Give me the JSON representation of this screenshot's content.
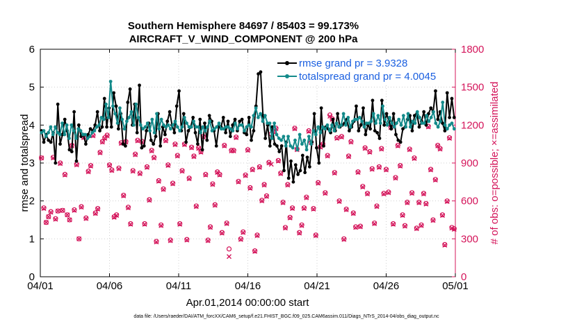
{
  "chart_data": {
    "type": "line",
    "title_line1": "Southern Hemisphere 84697 / 85403 = 99.173%",
    "title_line2": "AIRCRAFT_V_WIND_COMPONENT @ 200 hPa",
    "xlabel": "Apr.01,2014 00:00:00 start",
    "ylabel": "rmse and totalspread",
    "y2label": "# of obs: o=possible; ×=assimilated",
    "footer": "data file: /Users/raeder/DAI/ATM_forcXX/CAM6_setup/f.e21.FHIST_BGC.f09_025.CAM6assim.011/Diags_NTrS_2014-04/obs_diag_output.nc",
    "xlim": [
      0,
      30
    ],
    "ylim": [
      0,
      6
    ],
    "y2lim": [
      0,
      1800
    ],
    "x_ticks": [
      {
        "day": 0,
        "label": "04/01"
      },
      {
        "day": 5,
        "label": "04/06"
      },
      {
        "day": 10,
        "label": "04/11"
      },
      {
        "day": 15,
        "label": "04/16"
      },
      {
        "day": 20,
        "label": "04/21"
      },
      {
        "day": 25,
        "label": "04/26"
      },
      {
        "day": 30,
        "label": "05/01"
      }
    ],
    "y_ticks": [
      0,
      1,
      2,
      3,
      4,
      5,
      6
    ],
    "y2_ticks": [
      0,
      300,
      600,
      900,
      1200,
      1500,
      1800
    ],
    "colors": {
      "rmse": "#000000",
      "spread": "#138a8a",
      "obs": "#d4145a",
      "legend_text": "#1a5fe0"
    },
    "series": [
      {
        "name": "rmse",
        "legend": "rmse grand pr = 3.9328",
        "values": [
          3.85,
          3.55,
          3.75,
          3.6,
          3.55,
          3.8,
          3.0,
          4.55,
          3.5,
          3.75,
          4.15,
          3.85,
          3.35,
          3.3,
          4.35,
          3.05,
          4.0,
          3.7,
          3.75,
          3.5,
          3.75,
          3.9,
          3.85,
          4.0,
          4.35,
          3.85,
          3.95,
          4.7,
          3.95,
          4.45,
          3.95,
          4.85,
          4.5,
          3.9,
          4.3,
          3.5,
          3.45,
          4.6,
          4.95,
          4.0,
          4.55,
          3.8,
          5.05,
          3.4,
          3.45,
          3.85,
          4.05,
          3.6,
          3.5,
          3.7,
          4.3,
          3.45,
          3.95,
          3.75,
          4.1,
          4.35,
          4.0,
          3.8,
          4.5,
          4.9,
          3.85,
          4.3,
          3.55,
          3.85,
          3.95,
          4.2,
          3.8,
          3.5,
          4.15,
          3.35,
          4.05,
          3.6,
          4.25,
          4.1,
          3.85,
          3.45,
          3.95,
          3.95,
          4.2,
          3.8,
          4.1,
          3.7,
          4.0,
          4.15,
          3.85,
          4.1,
          4.15,
          3.8,
          3.75,
          4.2,
          3.6,
          3.85,
          4.5,
          5.35,
          5.4,
          4.25,
          3.65,
          4.0,
          3.45,
          3.95,
          3.5,
          3.45,
          3.3,
          3.45,
          2.8,
          3.55,
          2.6,
          3.05,
          2.5,
          2.95,
          2.7,
          2.8,
          3.2,
          2.75,
          3.15,
          2.9,
          3.55,
          4.3,
          3.4,
          3.0,
          4.45,
          3.45,
          3.95,
          3.9,
          3.8,
          4.15,
          3.85,
          4.3,
          3.95,
          4.0,
          4.05,
          4.15,
          3.85,
          3.95,
          4.1,
          4.5,
          3.85,
          4.0,
          4.45,
          3.75,
          4.0,
          3.9,
          4.65,
          3.85,
          3.8,
          3.65,
          4.65,
          4.0,
          4.3,
          4.1,
          3.9,
          4.3,
          3.75,
          3.6,
          3.55,
          3.9,
          3.95,
          4.15,
          4.25,
          3.85,
          4.25,
          4.3,
          3.95,
          4.1,
          4.35,
          4.0,
          4.3,
          4.45,
          4.35,
          4.9,
          4.15,
          4.35,
          4.05,
          3.85,
          4.85,
          4.2,
          4.7,
          4.2
        ]
      },
      {
        "name": "totalspread",
        "legend": "totalspread grand pr = 4.0045",
        "values": [
          3.8,
          3.85,
          3.7,
          3.8,
          3.95,
          3.75,
          3.95,
          3.8,
          3.75,
          4.05,
          3.75,
          4.0,
          3.65,
          4.0,
          3.85,
          3.65,
          3.9,
          3.85,
          3.75,
          3.75,
          3.65,
          3.7,
          3.8,
          3.85,
          3.95,
          4.0,
          4.2,
          4.15,
          4.55,
          4.2,
          5.15,
          4.5,
          4.3,
          4.05,
          4.45,
          4.15,
          3.9,
          4.1,
          4.2,
          4.35,
          4.0,
          4.55,
          4.2,
          4.0,
          3.9,
          3.95,
          4.05,
          3.85,
          4.15,
          3.8,
          4.3,
          3.9,
          4.15,
          4.0,
          3.95,
          4.0,
          3.9,
          4.0,
          4.1,
          3.95,
          3.85,
          3.95,
          4.2,
          4.05,
          3.95,
          3.95,
          4.1,
          3.95,
          3.95,
          3.8,
          3.95,
          3.85,
          3.95,
          4.1,
          3.85,
          3.9,
          3.95,
          4.05,
          3.9,
          3.9,
          3.95,
          3.95,
          3.9,
          3.85,
          4.05,
          3.9,
          4.0,
          4.0,
          3.85,
          3.95,
          4.0,
          3.95,
          4.25,
          4.45,
          4.2,
          4.3,
          4.1,
          4.25,
          4.05,
          4.05,
          3.65,
          4.05,
          3.75,
          3.65,
          3.6,
          3.7,
          3.45,
          3.7,
          3.45,
          3.4,
          3.6,
          3.35,
          3.75,
          3.5,
          3.6,
          3.35,
          3.7,
          3.5,
          3.85,
          3.75,
          3.95,
          3.8,
          3.95,
          3.9,
          4.0,
          3.85,
          4.0,
          3.85,
          4.05,
          3.95,
          4.0,
          4.3,
          4.0,
          4.2,
          3.95,
          4.1,
          4.15,
          4.15,
          4.2,
          4.1,
          3.95,
          4.05,
          4.05,
          4.1,
          4.3,
          4.05,
          4.25,
          4.05,
          4.5,
          4.15,
          4.0,
          4.2,
          4.05,
          3.95,
          4.05,
          4.15,
          4.0,
          4.25,
          3.95,
          4.3,
          3.95,
          4.1,
          4.05,
          4.35,
          4.2,
          4.05,
          4.05,
          4.25,
          4.1,
          4.2,
          4.35,
          4.05,
          3.95,
          4.1,
          4.6,
          4.0,
          3.9,
          4.0,
          4.05,
          3.9
        ]
      },
      {
        "name": "obs_possible",
        "values": [
          940,
          545,
          430,
          475,
          515,
          945,
          460,
          520,
          900,
          525,
          810,
          490,
          450,
          1040,
          530,
          890,
          300,
          555,
          1105,
          465,
          835,
          880,
          1120,
          505,
          540,
          985,
          1070,
          1100,
          1120,
          885,
          845,
          475,
          490,
          860,
          1060,
          645,
          1070,
          550,
          420,
          840,
          970,
          1080,
          820,
          1070,
          420,
          870,
          610,
          1000,
          945,
          280,
          760,
          410,
          695,
          1080,
          885,
          290,
          740,
          1050,
          960,
          420,
          840,
          1050,
          295,
          780,
          1025,
          955,
          560,
          1020,
          990,
          1110,
          810,
          290,
          395,
          735,
          570,
          830,
          810,
          350,
          1040,
          425,
          220,
          1000,
          1000,
          1105,
          755,
          300,
          355,
          805,
          1005,
          705,
          850,
          205,
          330,
          870,
          605,
          730,
          640,
          905,
          1130,
          1150,
          1175,
          920,
          820,
          590,
          390,
          730,
          470,
          545,
          1175,
          1010,
          350,
          410,
          545,
          630,
          1155,
          1065,
          540,
          330,
          745,
          1030,
          1050,
          665,
          960,
          1280,
          1250,
          825,
          1100,
          600,
          1110,
          300,
          535,
          955,
          1070,
          505,
          395,
          830,
          400,
          715,
          1020,
          660,
          990,
          855,
          425,
          560,
          870,
          1015,
          660,
          850,
          670,
          1185,
          420,
          785,
          1040,
          880,
          490,
          405,
          590,
          1010,
          665,
          940,
          385,
          590,
          410,
          660,
          580,
          1190,
          850,
          450,
          770,
          1040,
          1015,
          490,
          255,
          600,
          1100,
          390,
          380
        ]
      },
      {
        "name": "obs_assimilated",
        "values": [
          940,
          540,
          430,
          475,
          510,
          940,
          455,
          520,
          895,
          525,
          805,
          490,
          450,
          1035,
          525,
          885,
          300,
          550,
          1100,
          460,
          830,
          875,
          1115,
          500,
          535,
          980,
          1065,
          1095,
          1115,
          880,
          840,
          470,
          485,
          855,
          1055,
          640,
          1065,
          545,
          415,
          835,
          965,
          1075,
          815,
          1065,
          415,
          865,
          605,
          995,
          940,
          275,
          755,
          405,
          690,
          1075,
          880,
          285,
          735,
          1045,
          955,
          415,
          835,
          1045,
          290,
          775,
          1020,
          950,
          555,
          1015,
          985,
          1105,
          805,
          285,
          390,
          730,
          565,
          825,
          805,
          345,
          1035,
          420,
          160,
          995,
          995,
          1100,
          750,
          295,
          350,
          800,
          1000,
          700,
          845,
          200,
          325,
          865,
          600,
          725,
          635,
          900,
          890,
          1145,
          1170,
          915,
          815,
          585,
          385,
          725,
          465,
          540,
          1170,
          1005,
          345,
          405,
          540,
          625,
          1150,
          1060,
          535,
          325,
          740,
          1025,
          1045,
          660,
          955,
          1270,
          1245,
          820,
          1095,
          595,
          1105,
          295,
          530,
          950,
          1065,
          500,
          390,
          825,
          395,
          710,
          1015,
          655,
          985,
          850,
          420,
          555,
          865,
          1010,
          655,
          845,
          665,
          1180,
          415,
          780,
          1035,
          875,
          485,
          400,
          585,
          1005,
          660,
          935,
          380,
          585,
          405,
          655,
          575,
          1185,
          845,
          445,
          765,
          1035,
          1010,
          485,
          250,
          595,
          1095,
          385,
          375
        ]
      }
    ]
  }
}
